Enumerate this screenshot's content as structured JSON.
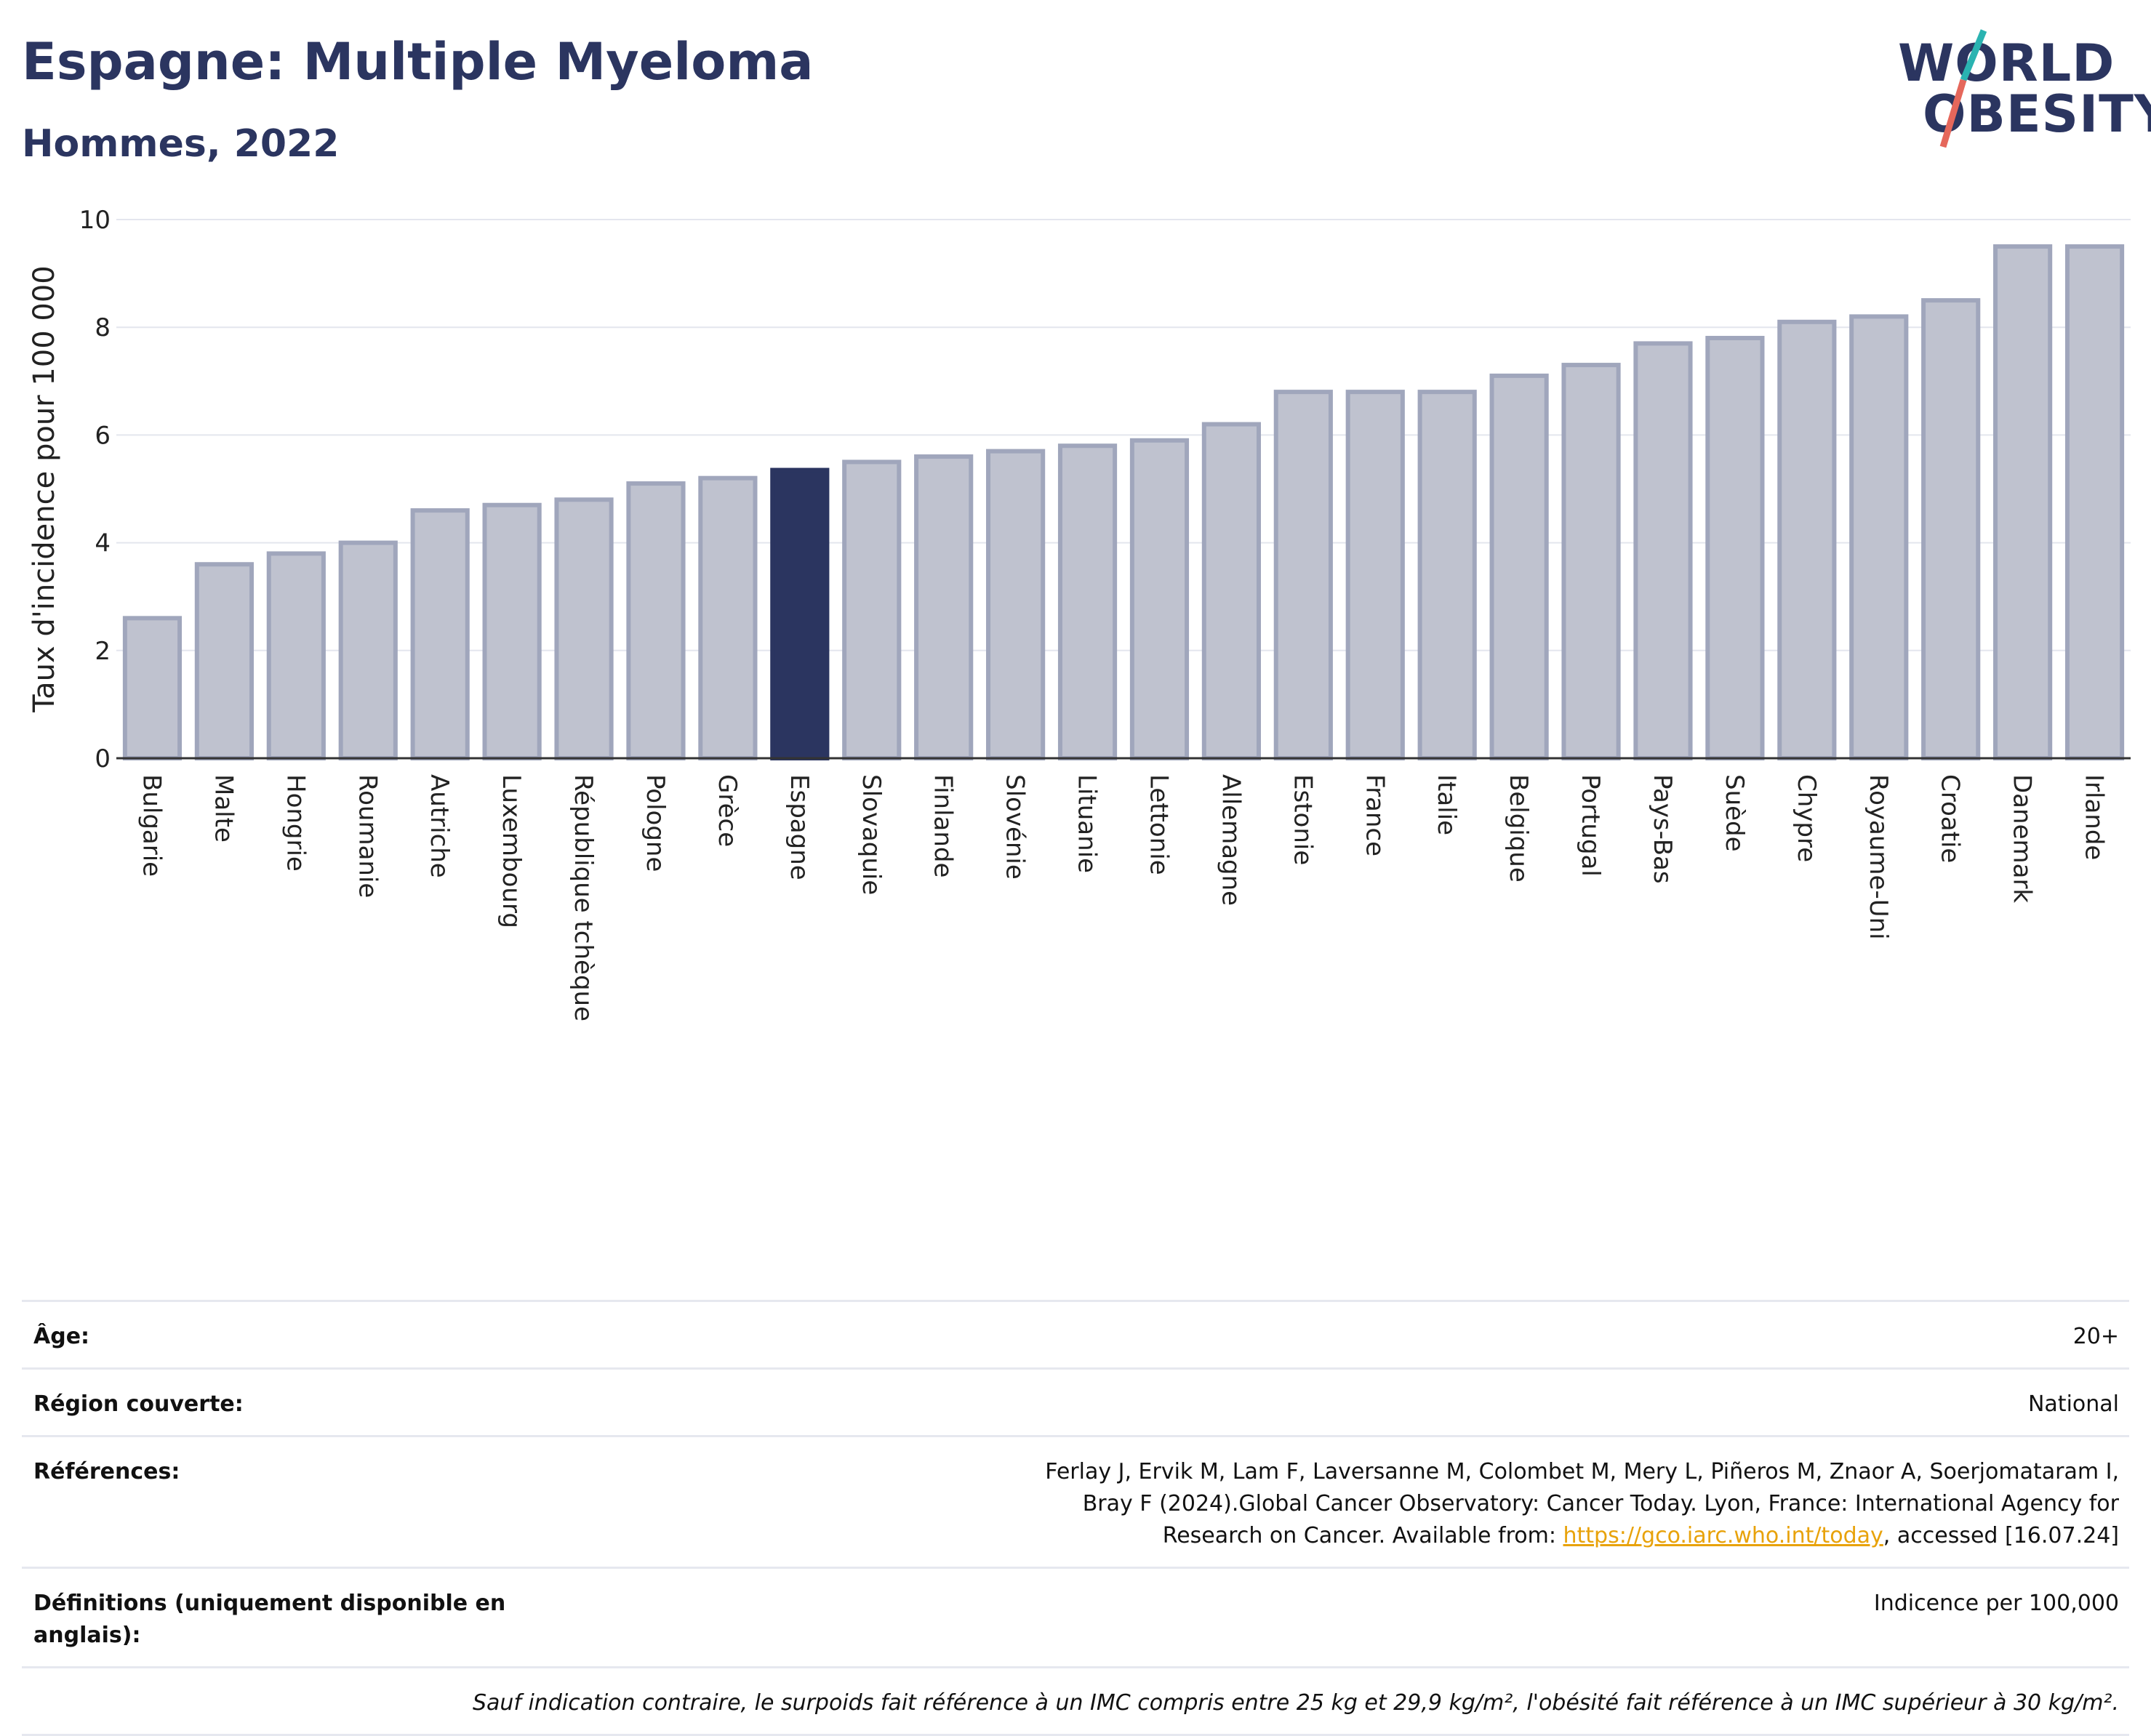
{
  "header": {
    "title": "Espagne: Multiple Myeloma",
    "subtitle": "Hommes, 2022",
    "logo_line1": "WORLD",
    "logo_line2": "OBESITY"
  },
  "colors": {
    "highlight": "#2b3560",
    "bar_fill": "#bfc2cf",
    "bar_stroke": "#a0a6bc",
    "logo_slash_teal": "#2ab3b1",
    "logo_slash_red": "#e5675b"
  },
  "chart_data": {
    "type": "bar",
    "title": "Espagne: Multiple Myeloma",
    "subtitle": "Hommes, 2022",
    "ylabel": "Taux d'incidence pour 100 000",
    "xlabel": "",
    "ylim": [
      0,
      10
    ],
    "yticks": [
      "0",
      "2",
      "4",
      "6",
      "8",
      "10"
    ],
    "grid": true,
    "highlight": "Espagne",
    "categories": [
      "Bulgarie",
      "Malte",
      "Hongrie",
      "Roumanie",
      "Autriche",
      "Luxembourg",
      "République tchèque",
      "Pologne",
      "Grèce",
      "Espagne",
      "Slovaquie",
      "Finlande",
      "Slovénie",
      "Lituanie",
      "Lettonie",
      "Allemagne",
      "Estonie",
      "France",
      "Italie",
      "Belgique",
      "Portugal",
      "Pays-Bas",
      "Suède",
      "Chypre",
      "Royaume-Uni",
      "Croatie",
      "Danemark",
      "Irlande"
    ],
    "values": [
      2.6,
      3.6,
      3.8,
      4.0,
      4.6,
      4.7,
      4.8,
      5.1,
      5.2,
      5.35,
      5.5,
      5.6,
      5.7,
      5.8,
      5.9,
      6.2,
      6.8,
      6.8,
      6.8,
      7.1,
      7.3,
      7.7,
      7.8,
      8.1,
      8.2,
      8.5,
      9.5,
      9.5
    ]
  },
  "meta": {
    "age_label": "Âge:",
    "age_value": "20+",
    "region_label": "Région couverte:",
    "region_value": "National",
    "refs_label": "Références:",
    "refs_text1": "Ferlay J, Ervik M, Lam F, Laversanne M, Colombet M, Mery L, Piñeros M, Znaor A, Soerjomataram I, Bray F (2024).Global Cancer Observatory: Cancer Today. Lyon, France: International Agency for Research on Cancer. Available from: ",
    "refs_link": "https://gco.iarc.who.int/today",
    "refs_text2": ", accessed [16.07.24]",
    "defs_label": "Définitions (uniquement disponible en anglais):",
    "defs_value": "Indicence per 100,000",
    "note": "Sauf indication contraire, le surpoids fait référence à un IMC compris entre 25 kg et 29,9 kg/m², l'obésité fait référence à un IMC supérieur à 30 kg/m²."
  }
}
